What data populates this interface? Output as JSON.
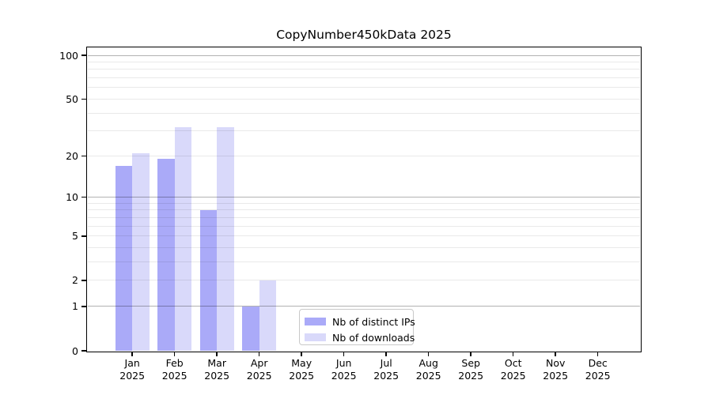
{
  "chart_data": {
    "type": "bar",
    "title": "CopyNumber450kData 2025",
    "x": {
      "categories": [
        "Jan",
        "Feb",
        "Mar",
        "Apr",
        "May",
        "Jun",
        "Jul",
        "Aug",
        "Sep",
        "Oct",
        "Nov",
        "Dec"
      ],
      "sublabel": "2025"
    },
    "y": {
      "scale": "log1p",
      "tick_values": [
        100,
        50,
        20,
        10,
        5,
        2,
        1,
        0
      ],
      "major_gridlines": [
        100,
        10,
        1
      ],
      "minor_gridlines": [
        90,
        80,
        70,
        60,
        50,
        40,
        30,
        20,
        9,
        8,
        7,
        6,
        5,
        4,
        3,
        2
      ],
      "range_max": 111
    },
    "series": [
      {
        "name": "Nb of distinct IPs",
        "color": "#aaaaf8",
        "values": [
          17,
          19,
          8,
          1,
          0,
          0,
          0,
          0,
          0,
          0,
          0,
          0
        ]
      },
      {
        "name": "Nb of downloads",
        "color": "#d9d9fa",
        "values": [
          21,
          32,
          32,
          2,
          0,
          0,
          0,
          0,
          0,
          0,
          0,
          0
        ]
      }
    ],
    "legend": {
      "position": "lower-center"
    },
    "grid": true,
    "background": "#ffffff"
  }
}
